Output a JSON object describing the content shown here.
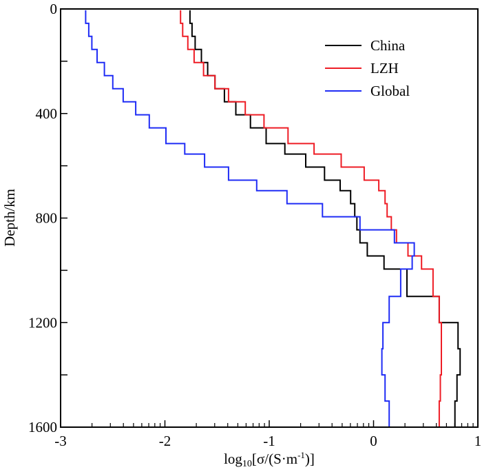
{
  "chart_data": {
    "type": "line",
    "step": true,
    "title": "",
    "xlabel": "log10[σ/(S·m-1)]",
    "xlabel_parts": {
      "base": "log",
      "sub": "10",
      "mid": "[σ/(S·m",
      "sup": "-1",
      "end": ")]"
    },
    "ylabel": "Depth/km",
    "xlim": [
      -3,
      1
    ],
    "ylim": [
      0,
      1600
    ],
    "y_inverted": true,
    "x_ticks": [
      -3,
      -2,
      -1,
      0,
      1
    ],
    "x_tick_labels": [
      "-3",
      "-2",
      "-1",
      "0",
      "1"
    ],
    "y_ticks": [
      0,
      400,
      800,
      1200,
      1600
    ],
    "y_tick_labels": [
      "0",
      "400",
      "800",
      "1200",
      "1600"
    ],
    "y_minor_ticks": [
      200,
      600,
      1000,
      1400
    ],
    "legend_position": "top-right",
    "depth_boundaries": [
      5,
      55,
      105,
      155,
      205,
      255,
      305,
      355,
      405,
      455,
      515,
      555,
      605,
      655,
      695,
      745,
      795,
      845,
      895,
      945,
      995,
      1100,
      1200,
      1300,
      1400,
      1500,
      1600
    ],
    "series": [
      {
        "name": "China",
        "color": "#000000",
        "values": [
          -1.76,
          -1.74,
          -1.71,
          -1.65,
          -1.59,
          -1.52,
          -1.43,
          -1.32,
          -1.18,
          -1.03,
          -0.85,
          -0.65,
          -0.47,
          -0.32,
          -0.22,
          -0.18,
          -0.16,
          -0.13,
          -0.06,
          0.1,
          0.32,
          0.63,
          0.81,
          0.83,
          0.8,
          0.78
        ]
      },
      {
        "name": "LZH",
        "color": "#ee1c25",
        "values": [
          -1.85,
          -1.83,
          -1.78,
          -1.72,
          -1.63,
          -1.52,
          -1.39,
          -1.23,
          -1.05,
          -0.82,
          -0.57,
          -0.31,
          -0.09,
          0.05,
          0.11,
          0.13,
          0.17,
          0.22,
          0.33,
          0.46,
          0.57,
          0.63,
          0.65,
          0.65,
          0.64,
          0.63
        ]
      },
      {
        "name": "Global",
        "color": "#1f2cf5",
        "values": [
          -2.76,
          -2.73,
          -2.7,
          -2.65,
          -2.58,
          -2.5,
          -2.4,
          -2.28,
          -2.15,
          -1.99,
          -1.81,
          -1.62,
          -1.39,
          -1.12,
          -0.83,
          -0.49,
          -0.13,
          0.2,
          0.39,
          0.37,
          0.26,
          0.15,
          0.09,
          0.08,
          0.11,
          0.15
        ]
      }
    ]
  }
}
